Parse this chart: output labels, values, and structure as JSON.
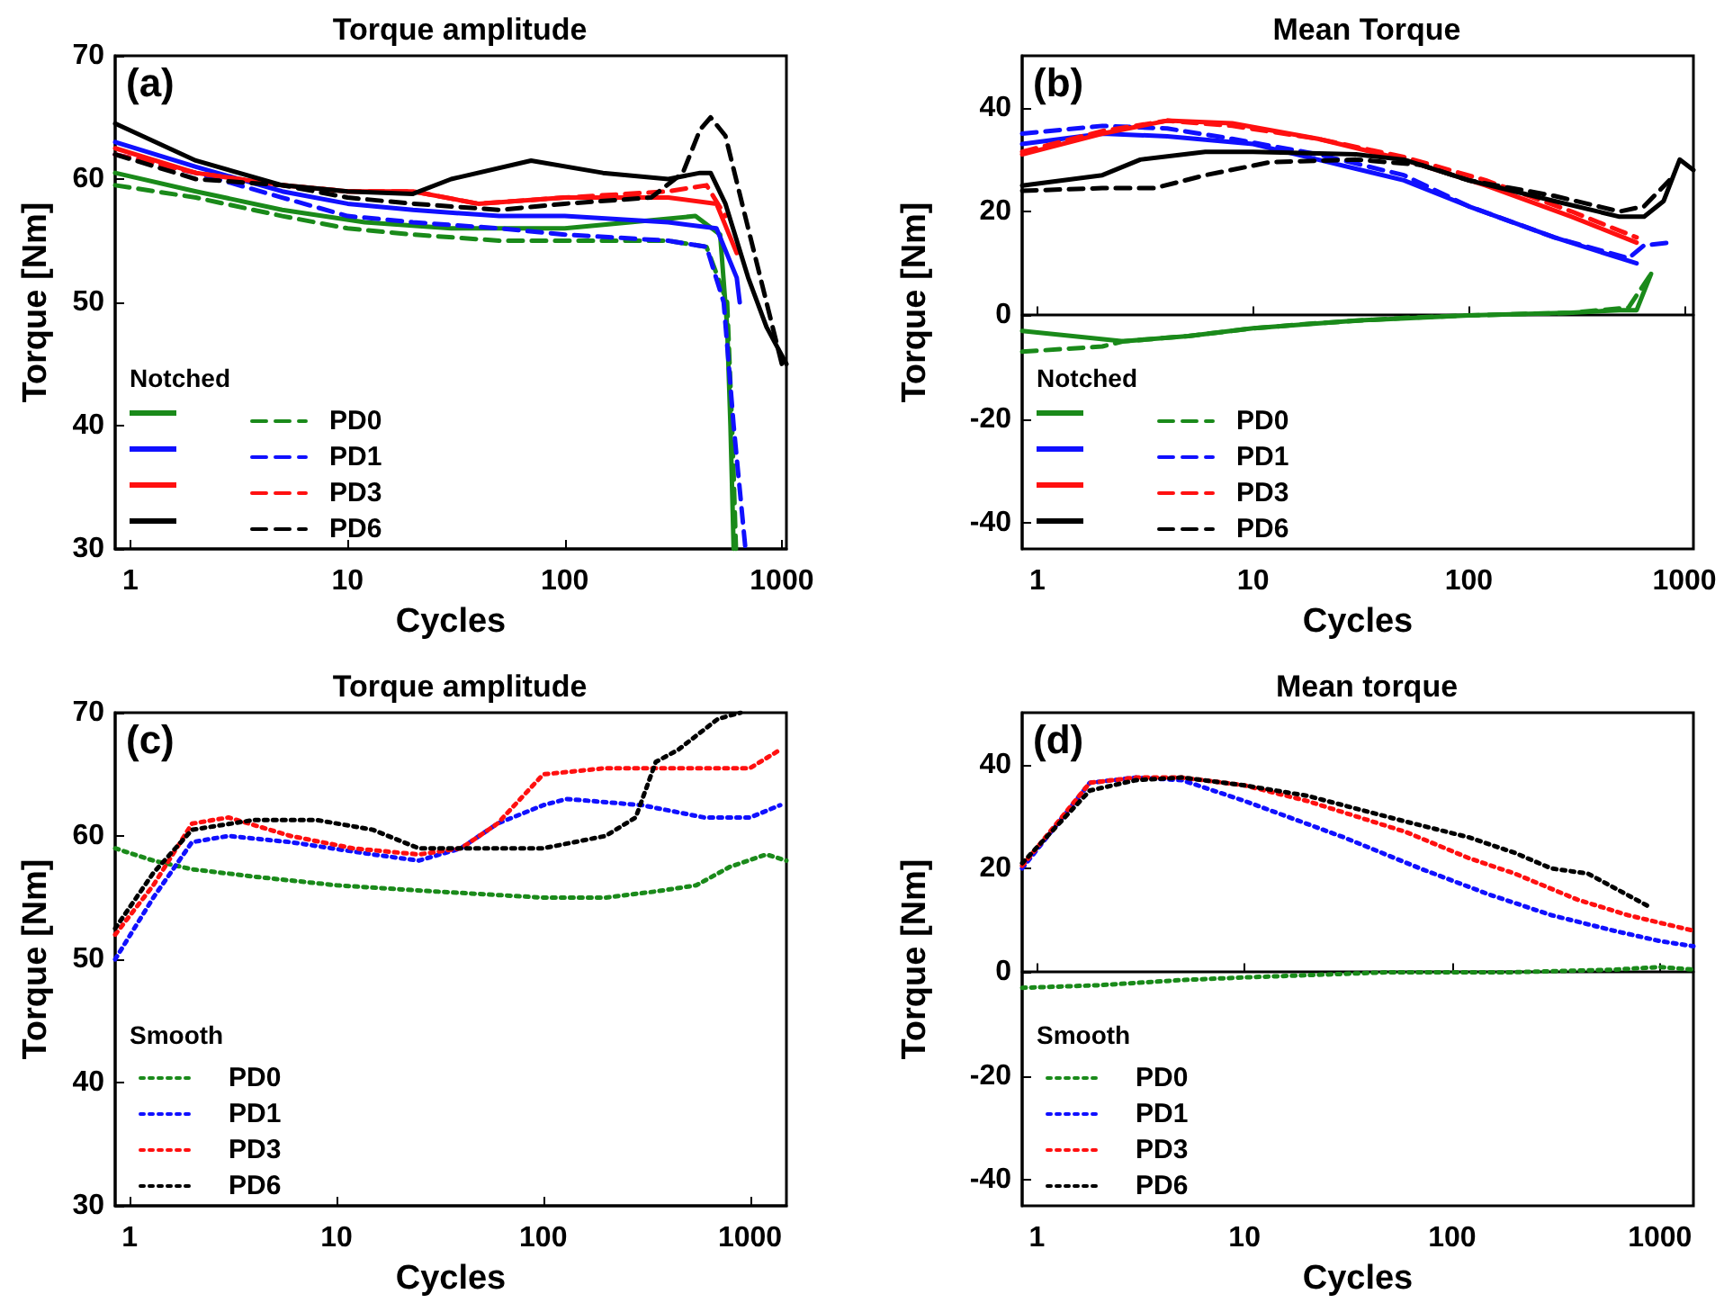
{
  "chart_data": [
    {
      "type": "line",
      "title": "Torque amplitude",
      "xlabel": "Cycles",
      "ylabel": "Torque [Nm]",
      "legend_title": "Notched",
      "annotations": [
        "(a)"
      ],
      "log": "x",
      "legend": "bottom left",
      "xlim": [
        0.85,
        1050
      ],
      "xticks": [
        1,
        10,
        100,
        1000
      ],
      "ylim": [
        30,
        70
      ],
      "yticks": [
        30,
        40,
        50,
        60,
        70
      ],
      "series": [
        {
          "color": "#1a8a1a",
          "line_style": "solid",
          "x": [
            0.85,
            2,
            5,
            12,
            30,
            100,
            200,
            400,
            520,
            560,
            580,
            600
          ],
          "values": [
            60.5,
            59,
            57.5,
            56.5,
            56,
            56,
            56.5,
            57,
            55.5,
            48,
            40,
            30
          ]
        },
        {
          "name": "PD0",
          "color": "#1a8a1a",
          "line_style": "dashed",
          "x": [
            0.85,
            2,
            5,
            10,
            20,
            50,
            100,
            300,
            450,
            560,
            590,
            615
          ],
          "values": [
            59.5,
            58.5,
            57,
            56,
            55.5,
            55,
            55,
            55,
            54.5,
            50,
            40,
            30
          ]
        },
        {
          "color": "#1010ff",
          "line_style": "solid",
          "x": [
            0.85,
            2,
            5,
            10,
            20,
            50,
            100,
            300,
            500,
            620,
            640
          ],
          "values": [
            63,
            61,
            59,
            58,
            57.5,
            57,
            57,
            56.5,
            56,
            52,
            50
          ]
        },
        {
          "name": "PD1",
          "color": "#1010ff",
          "line_style": "dashed",
          "x": [
            0.85,
            2,
            5,
            10,
            20,
            50,
            100,
            300,
            450,
            540,
            600,
            680
          ],
          "values": [
            62,
            60.5,
            58.5,
            57,
            56.5,
            56,
            55.5,
            55,
            54.5,
            50,
            40,
            30
          ]
        },
        {
          "color": "#ff1010",
          "line_style": "solid",
          "x": [
            0.85,
            2,
            5,
            10,
            20,
            40,
            100,
            300,
            500,
            620
          ],
          "values": [
            62.5,
            60.5,
            59.5,
            59,
            59,
            58,
            58.5,
            58.5,
            58,
            54
          ]
        },
        {
          "name": "PD3",
          "color": "#ff1010",
          "line_style": "dashed",
          "x": [
            0.85,
            2,
            5,
            10,
            20,
            40,
            100,
            300,
            450,
            550
          ],
          "values": [
            62,
            60.5,
            59.5,
            59,
            59,
            58,
            58.5,
            59,
            59.5,
            57
          ]
        },
        {
          "color": "#000000",
          "line_style": "solid",
          "x": [
            0.85,
            2,
            5,
            10,
            20,
            30,
            70,
            150,
            300,
            420,
            470,
            550,
            700,
            850,
            1050
          ],
          "values": [
            64.5,
            61.5,
            59.5,
            59,
            58.8,
            60,
            61.5,
            60.5,
            60,
            60.5,
            60.5,
            58,
            52,
            48,
            45
          ]
        },
        {
          "name": "PD6",
          "color": "#000000",
          "line_style": "dashed",
          "x": [
            0.85,
            2,
            5,
            10,
            20,
            50,
            100,
            250,
            350,
            420,
            470,
            550,
            700,
            850,
            1000
          ],
          "values": [
            62,
            60,
            59.5,
            58.5,
            58,
            57.5,
            58,
            58.5,
            60.5,
            64,
            65,
            63.5,
            56,
            50,
            45
          ]
        }
      ]
    },
    {
      "type": "line",
      "title": "Mean Torque",
      "xlabel": "Cycles",
      "ylabel": "Torque [Nm]",
      "legend_title": "Notched",
      "annotations": [
        "(b)"
      ],
      "log": "x",
      "legend": "bottom left",
      "xlim": [
        0.85,
        1100
      ],
      "xticks": [
        1,
        10,
        100,
        1000
      ],
      "ylim": [
        -45,
        50
      ],
      "yticks": [
        -40,
        -20,
        0,
        20,
        40
      ],
      "series": [
        {
          "color": "#1a8a1a",
          "line_style": "solid",
          "x": [
            0.85,
            2.5,
            5,
            10,
            30,
            100,
            300,
            500,
            600,
            700
          ],
          "values": [
            -3,
            -5,
            -4,
            -2.5,
            -1,
            0,
            0.5,
            1,
            1,
            8
          ]
        },
        {
          "name": "PD0",
          "color": "#1a8a1a",
          "line_style": "dashed",
          "x": [
            0.85,
            2,
            2.5,
            5,
            10,
            20,
            50,
            100,
            300,
            550,
            700
          ],
          "values": [
            -7,
            -6,
            -5,
            -4,
            -2.5,
            -1.5,
            -0.5,
            0,
            0.5,
            1.5,
            8
          ]
        },
        {
          "color": "#1010ff",
          "line_style": "solid",
          "x": [
            0.85,
            2,
            4,
            10,
            20,
            50,
            100,
            250,
            600
          ],
          "values": [
            33,
            35,
            34.5,
            33,
            30,
            26,
            21,
            15,
            10
          ]
        },
        {
          "name": "PD1",
          "color": "#1010ff",
          "line_style": "dashed",
          "x": [
            0.85,
            2,
            4,
            8,
            20,
            50,
            100,
            250,
            550,
            650,
            850
          ],
          "values": [
            35,
            36.5,
            36,
            34,
            31,
            27,
            21,
            15,
            11,
            13.5,
            14
          ]
        },
        {
          "color": "#ff1010",
          "line_style": "solid",
          "x": [
            0.85,
            2,
            4,
            8,
            20,
            50,
            120,
            300,
            600
          ],
          "values": [
            31,
            35,
            37.5,
            37,
            34,
            30,
            25,
            19,
            14
          ]
        },
        {
          "name": "PD3",
          "color": "#ff1010",
          "line_style": "dashed",
          "x": [
            0.85,
            2,
            4,
            8,
            20,
            50,
            120,
            300,
            600
          ],
          "values": [
            31.5,
            35.5,
            37.5,
            36.5,
            34,
            30.5,
            26,
            20,
            15
          ]
        },
        {
          "color": "#000000",
          "line_style": "solid",
          "x": [
            0.85,
            2,
            3,
            6,
            10,
            30,
            50,
            100,
            250,
            500,
            650,
            800,
            950,
            1100
          ],
          "values": [
            25,
            27,
            30,
            31.5,
            31.5,
            31,
            30,
            26,
            22,
            19,
            19,
            22,
            30,
            28
          ]
        },
        {
          "name": "PD6",
          "color": "#000000",
          "line_style": "dashed",
          "x": [
            0.85,
            2,
            3.5,
            6,
            12,
            30,
            60,
            100,
            250,
            500,
            650,
            850
          ],
          "values": [
            24,
            24.5,
            24.5,
            27,
            29.5,
            30,
            29,
            26,
            23,
            20,
            21,
            26
          ]
        }
      ]
    },
    {
      "type": "line",
      "title": "Torque amplitude",
      "xlabel": "Cycles",
      "ylabel": "Torque [Nm]",
      "legend_title": "Smooth",
      "annotations": [
        "(c)"
      ],
      "log": "x",
      "legend": "bottom left",
      "xlim": [
        0.85,
        1500
      ],
      "xticks": [
        1,
        10,
        100,
        1000
      ],
      "ylim": [
        30,
        70
      ],
      "yticks": [
        30,
        40,
        50,
        60,
        70
      ],
      "series": [
        {
          "name": "PD0",
          "color": "#1a8a1a",
          "line_style": "dotted",
          "x": [
            0.85,
            1.3,
            2,
            4,
            10,
            30,
            100,
            200,
            350,
            550,
            800,
            1200,
            1500
          ],
          "values": [
            59,
            58,
            57.3,
            56.7,
            56,
            55.5,
            55,
            55,
            55.5,
            56,
            57.5,
            58.5,
            58
          ]
        },
        {
          "name": "PD1",
          "color": "#1010ff",
          "line_style": "dotted",
          "x": [
            0.85,
            1.3,
            2,
            3,
            6,
            15,
            25,
            40,
            60,
            100,
            130,
            300,
            600,
            1000,
            1400
          ],
          "values": [
            50,
            55,
            59.5,
            60,
            59.5,
            58.5,
            58,
            59,
            61,
            62.5,
            63,
            62.5,
            61.5,
            61.5,
            62.5
          ]
        },
        {
          "name": "PD3",
          "color": "#ff1010",
          "line_style": "dotted",
          "x": [
            0.85,
            1.3,
            2,
            3,
            6,
            12,
            25,
            40,
            60,
            100,
            200,
            500,
            1000,
            1400
          ],
          "values": [
            52,
            56,
            61,
            61.5,
            60,
            59,
            58.5,
            59,
            61,
            65,
            65.5,
            65.5,
            65.5,
            67
          ]
        },
        {
          "name": "PD6",
          "color": "#000000",
          "line_style": "dotted",
          "x": [
            0.85,
            1.3,
            2,
            4,
            8,
            15,
            25,
            50,
            100,
            200,
            280,
            350,
            450,
            700,
            900
          ],
          "values": [
            52.5,
            57,
            60.5,
            61.3,
            61.3,
            60.5,
            59,
            59,
            59,
            60,
            61.5,
            66,
            67,
            69.5,
            70
          ]
        }
      ]
    },
    {
      "type": "line",
      "title": "Mean torque",
      "xlabel": "Cycles",
      "ylabel": "Torque [Nm]",
      "legend_title": "Smooth",
      "annotations": [
        "(d)"
      ],
      "log": "x",
      "legend": "bottom left",
      "xlim": [
        0.85,
        1450
      ],
      "xticks": [
        1,
        10,
        100,
        1000
      ],
      "ylim": [
        -45,
        50
      ],
      "yticks": [
        -40,
        -20,
        0,
        20,
        40
      ],
      "series": [
        {
          "name": "PD0",
          "color": "#1a8a1a",
          "line_style": "dotted",
          "x": [
            0.85,
            2,
            5,
            10,
            50,
            200,
            600,
            1000,
            1450
          ],
          "values": [
            -3,
            -2.5,
            -1.5,
            -1,
            0,
            0,
            0.5,
            1,
            0.5
          ]
        },
        {
          "name": "PD1",
          "color": "#1010ff",
          "line_style": "dotted",
          "x": [
            0.85,
            1.8,
            3,
            5,
            10,
            30,
            70,
            150,
            300,
            600,
            1000,
            1450
          ],
          "values": [
            20,
            36.5,
            37.5,
            37,
            33,
            26,
            20,
            15,
            11,
            8,
            6,
            5
          ]
        },
        {
          "name": "PD3",
          "color": "#ff1010",
          "line_style": "dotted",
          "x": [
            0.85,
            1.8,
            3,
            5,
            10,
            20,
            60,
            120,
            200,
            400,
            700,
            1450
          ],
          "values": [
            20.5,
            36.5,
            37.5,
            37.5,
            36,
            33,
            27,
            22,
            19,
            14,
            11,
            8
          ]
        },
        {
          "name": "PD6",
          "color": "#000000",
          "line_style": "dotted",
          "x": [
            0.85,
            1.8,
            3,
            5,
            10,
            20,
            60,
            120,
            200,
            300,
            450,
            900
          ],
          "values": [
            21,
            35,
            37,
            37.5,
            36,
            34,
            29,
            26,
            23,
            20,
            19,
            12.5
          ]
        }
      ]
    }
  ]
}
